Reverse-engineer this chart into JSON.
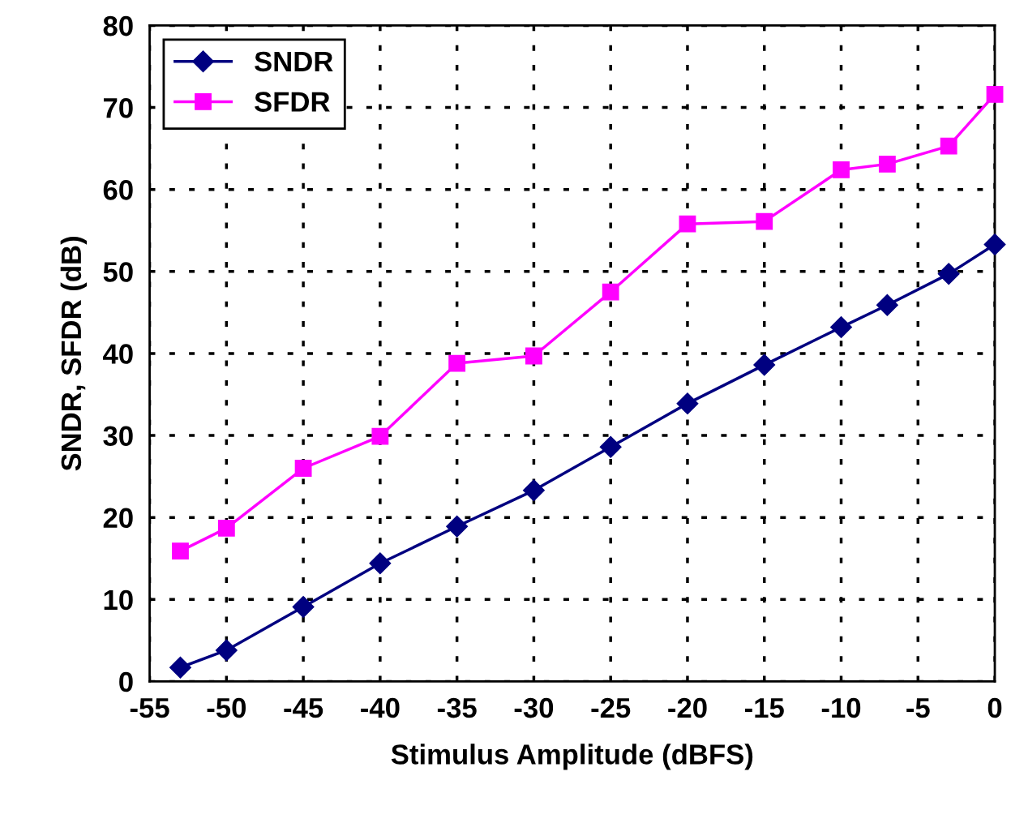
{
  "chart_data": {
    "type": "line",
    "xlabel": "Stimulus Amplitude (dBFS)",
    "ylabel": "SNDR, SFDR (dB)",
    "x": [
      -53,
      -50,
      -45,
      -40,
      -35,
      -30,
      -25,
      -20,
      -15,
      -10,
      -7,
      -3,
      0
    ],
    "series": [
      {
        "name": "SNDR",
        "color": "#000080",
        "marker": "diamond",
        "values": [
          1.7,
          3.8,
          9.1,
          14.4,
          18.9,
          23.3,
          28.6,
          33.9,
          38.6,
          43.2,
          45.9,
          49.7,
          53.3
        ]
      },
      {
        "name": "SFDR",
        "color": "#ff00ff",
        "marker": "square",
        "values": [
          15.9,
          18.7,
          26.0,
          29.9,
          38.8,
          39.7,
          47.5,
          55.8,
          56.1,
          62.4,
          63.1,
          65.3,
          71.6
        ]
      }
    ],
    "xlim": [
      -55,
      0
    ],
    "xticks": [
      -55,
      -50,
      -45,
      -40,
      -35,
      -30,
      -25,
      -20,
      -15,
      -10,
      -5,
      0
    ],
    "ylim": [
      0,
      80
    ],
    "yticks": [
      0,
      10,
      20,
      30,
      40,
      50,
      60,
      70,
      80
    ],
    "grid": true,
    "legend": "top left",
    "line_style": "solid"
  }
}
